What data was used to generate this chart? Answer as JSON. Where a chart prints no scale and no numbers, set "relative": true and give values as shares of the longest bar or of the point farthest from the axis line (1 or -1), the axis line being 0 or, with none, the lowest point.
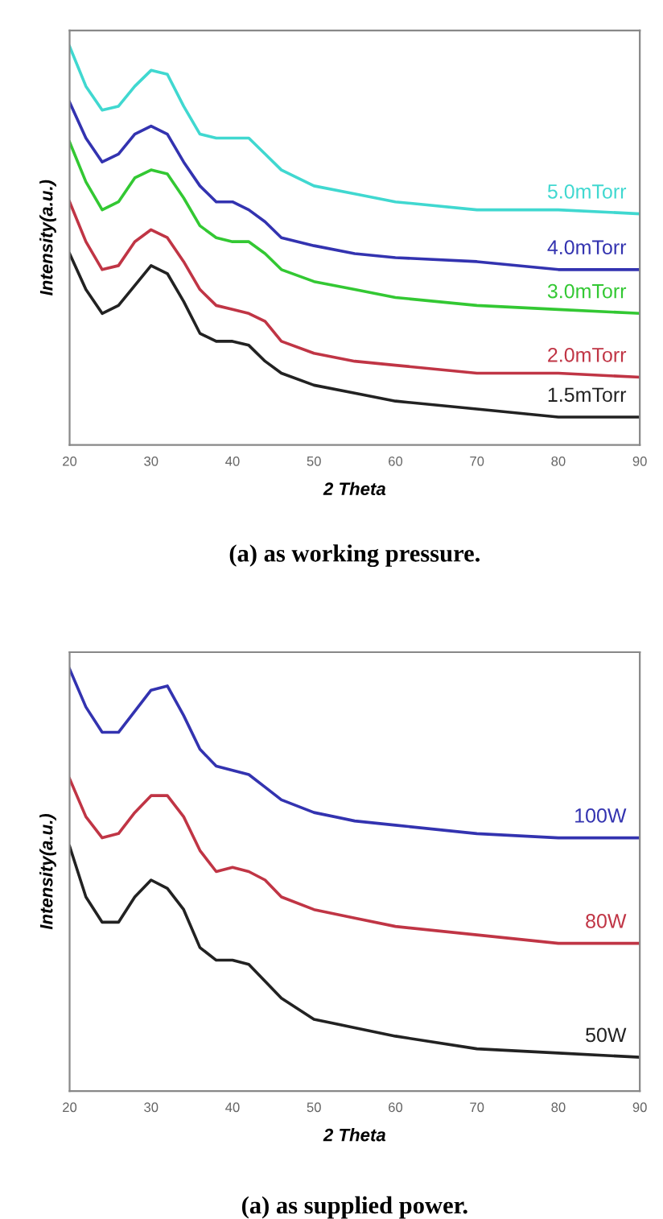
{
  "chart_data": [
    {
      "type": "line",
      "relative": true,
      "xlabel": "2 Theta",
      "ylabel": "Intensity(a.u.)",
      "annotations": [
        "(a) as working pressure."
      ],
      "xlim": [
        20,
        90
      ],
      "xticks": [
        20,
        30,
        40,
        50,
        60,
        70,
        80,
        90
      ],
      "grid": false,
      "legend": false,
      "marker": "none",
      "line_style": "solid",
      "x": [
        20,
        22,
        24,
        26,
        28,
        30,
        32,
        34,
        36,
        38,
        40,
        42,
        44,
        46,
        50,
        55,
        60,
        70,
        80,
        90
      ],
      "series": [
        {
          "name": "5.0mTorr",
          "color": "#40d8d0",
          "values": [
            1.0,
            0.9,
            0.84,
            0.85,
            0.9,
            0.94,
            0.93,
            0.85,
            0.78,
            0.77,
            0.77,
            0.77,
            0.73,
            0.69,
            0.65,
            0.63,
            0.61,
            0.59,
            0.59,
            0.58
          ]
        },
        {
          "name": "4.0mTorr",
          "color": "#3333b0",
          "values": [
            0.86,
            0.77,
            0.71,
            0.73,
            0.78,
            0.8,
            0.78,
            0.71,
            0.65,
            0.61,
            0.61,
            0.59,
            0.56,
            0.52,
            0.5,
            0.48,
            0.47,
            0.46,
            0.44,
            0.44
          ]
        },
        {
          "name": "3.0mTorr",
          "color": "#33c833",
          "values": [
            0.76,
            0.66,
            0.59,
            0.61,
            0.67,
            0.69,
            0.68,
            0.62,
            0.55,
            0.52,
            0.51,
            0.51,
            0.48,
            0.44,
            0.41,
            0.39,
            0.37,
            0.35,
            0.34,
            0.33
          ]
        },
        {
          "name": "2.0mTorr",
          "color": "#c03545",
          "values": [
            0.61,
            0.51,
            0.44,
            0.45,
            0.51,
            0.54,
            0.52,
            0.46,
            0.39,
            0.35,
            0.34,
            0.33,
            0.31,
            0.26,
            0.23,
            0.21,
            0.2,
            0.18,
            0.18,
            0.17
          ]
        },
        {
          "name": "1.5mTorr",
          "color": "#222222",
          "values": [
            0.48,
            0.39,
            0.33,
            0.35,
            0.4,
            0.45,
            0.43,
            0.36,
            0.28,
            0.26,
            0.26,
            0.25,
            0.21,
            0.18,
            0.15,
            0.13,
            0.11,
            0.09,
            0.07,
            0.07
          ]
        }
      ]
    },
    {
      "type": "line",
      "relative": true,
      "xlabel": "2 Theta",
      "ylabel": "Intensity(a.u.)",
      "annotations": [
        "(a) as supplied power."
      ],
      "xlim": [
        20,
        90
      ],
      "xticks": [
        20,
        30,
        40,
        50,
        60,
        70,
        80,
        90
      ],
      "grid": false,
      "legend": false,
      "marker": "none",
      "line_style": "solid",
      "x": [
        20,
        22,
        24,
        26,
        28,
        30,
        32,
        34,
        36,
        38,
        40,
        42,
        44,
        46,
        50,
        55,
        60,
        70,
        80,
        90
      ],
      "series": [
        {
          "name": "100W",
          "color": "#3333b0",
          "values": [
            1.0,
            0.91,
            0.85,
            0.85,
            0.9,
            0.95,
            0.96,
            0.89,
            0.81,
            0.77,
            0.76,
            0.75,
            0.72,
            0.69,
            0.66,
            0.64,
            0.63,
            0.61,
            0.6,
            0.6
          ]
        },
        {
          "name": "80W",
          "color": "#c03545",
          "values": [
            0.74,
            0.65,
            0.6,
            0.61,
            0.66,
            0.7,
            0.7,
            0.65,
            0.57,
            0.52,
            0.53,
            0.52,
            0.5,
            0.46,
            0.43,
            0.41,
            0.39,
            0.37,
            0.35,
            0.35
          ]
        },
        {
          "name": "50W",
          "color": "#222222",
          "values": [
            0.58,
            0.46,
            0.4,
            0.4,
            0.46,
            0.5,
            0.48,
            0.43,
            0.34,
            0.31,
            0.31,
            0.3,
            0.26,
            0.22,
            0.17,
            0.15,
            0.13,
            0.1,
            0.09,
            0.08
          ]
        }
      ]
    }
  ]
}
